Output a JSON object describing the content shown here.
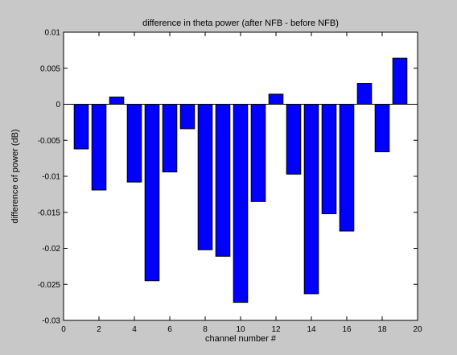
{
  "figure": {
    "background": "#c8c8c8"
  },
  "chart_data": {
    "type": "bar",
    "title": "difference in theta power (after NFB - before NFB)",
    "xlabel": "channel number #",
    "ylabel": "difference of power (dB)",
    "x": [
      1,
      2,
      3,
      4,
      5,
      6,
      7,
      8,
      9,
      10,
      11,
      12,
      13,
      14,
      15,
      16,
      17,
      18,
      19
    ],
    "values": [
      -0.0062,
      -0.0119,
      0.001,
      -0.0108,
      -0.0245,
      -0.0094,
      -0.0034,
      -0.0202,
      -0.0211,
      -0.0275,
      -0.0135,
      0.0014,
      -0.0097,
      -0.0263,
      -0.0152,
      -0.0176,
      0.0029,
      -0.0066,
      0.0064
    ],
    "xlim": [
      0,
      20
    ],
    "ylim": [
      -0.03,
      0.01
    ],
    "xticks": [
      0,
      2,
      4,
      6,
      8,
      10,
      12,
      14,
      16,
      18,
      20
    ],
    "xtick_labels": [
      "0",
      "2",
      "4",
      "6",
      "8",
      "10",
      "12",
      "14",
      "16",
      "18",
      "20"
    ],
    "yticks": [
      0.01,
      0.005,
      0,
      -0.005,
      -0.01,
      -0.015,
      -0.02,
      -0.025,
      -0.03
    ],
    "ytick_labels": [
      "0.01",
      "0.005",
      "0",
      "-0.005",
      "-0.01",
      "-0.015",
      "-0.02",
      "-0.025",
      "-0.03"
    ],
    "bar_color": "#0000ff",
    "bar_edge_color": "#000000",
    "axes_background": "#ffffff",
    "grid": false
  }
}
